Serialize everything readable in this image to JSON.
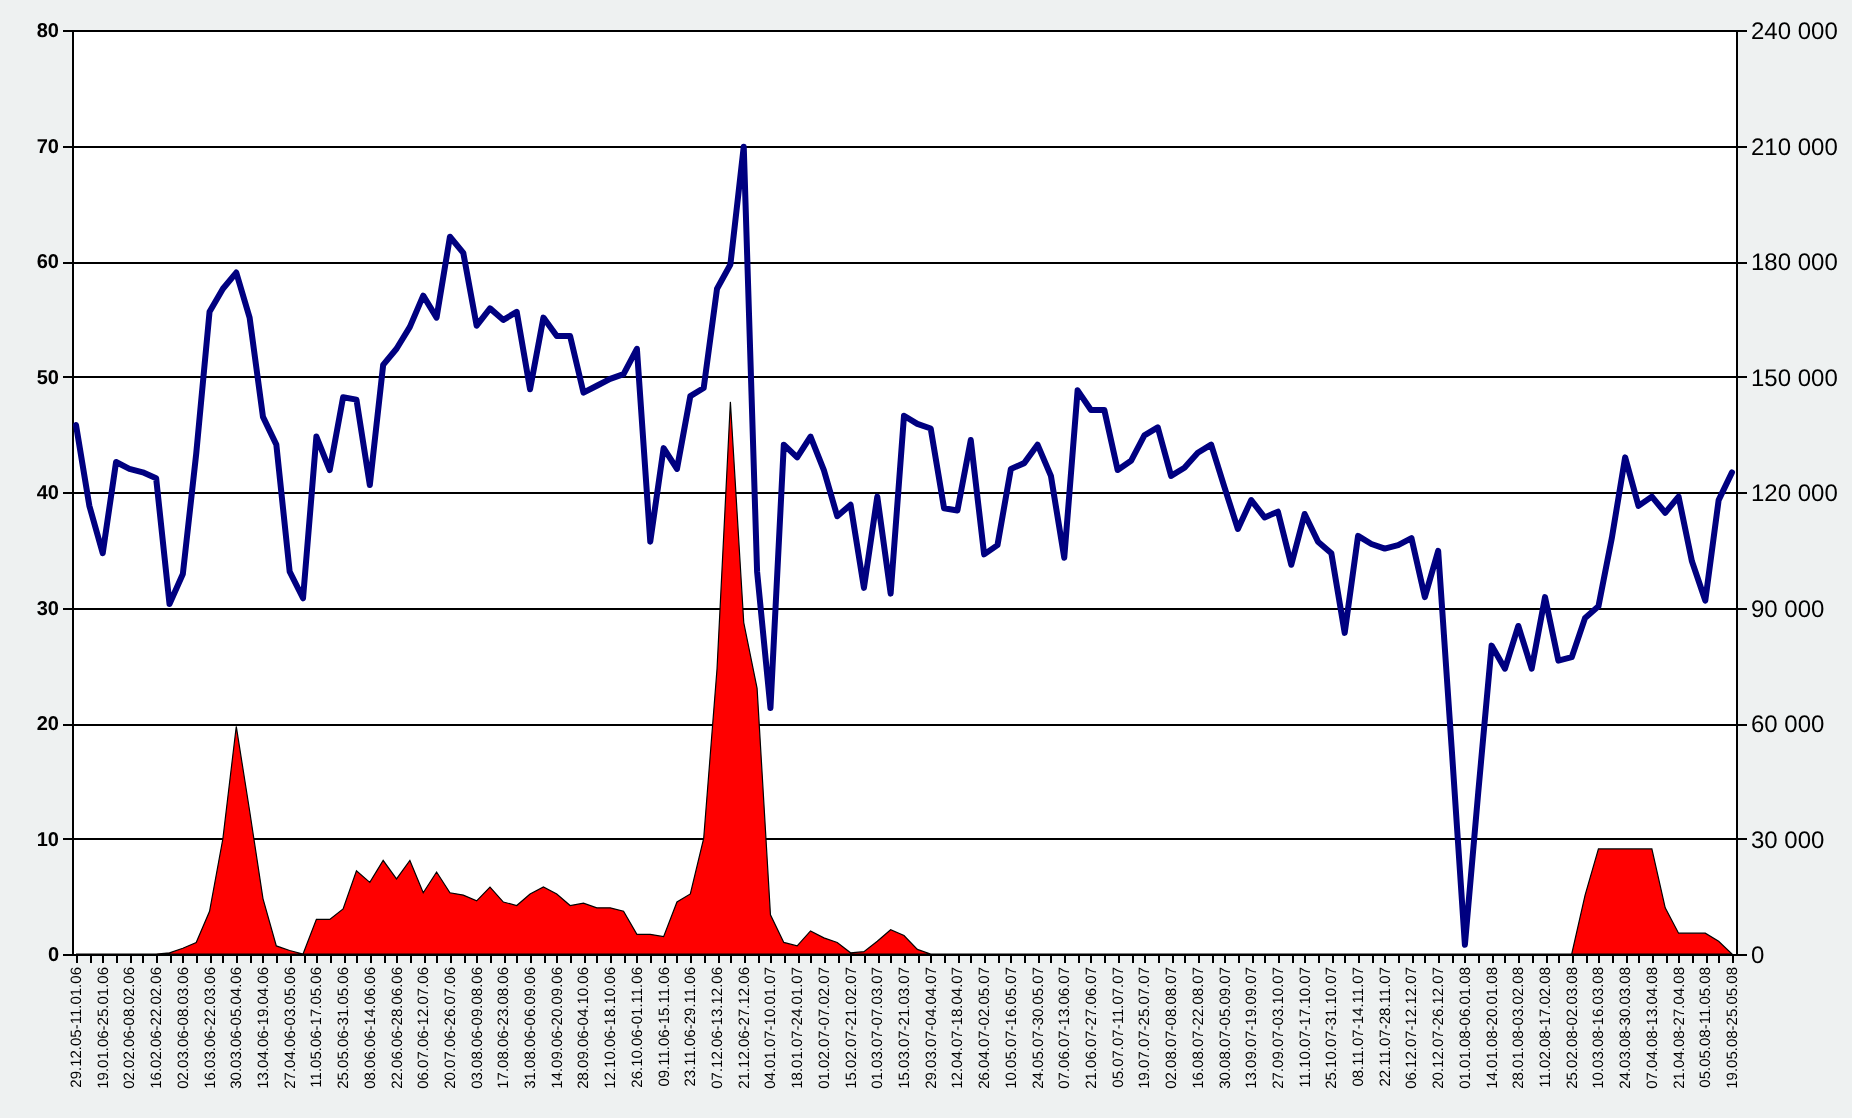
{
  "chart_data": {
    "type": "line",
    "categories": [
      "29.12.05-11.01.06",
      null,
      "19.01.06-25.01.06",
      null,
      "02.02.06-08.02.06",
      null,
      "16.02.06-22.02.06",
      null,
      "02.03.06-08.03.06",
      null,
      "16.03.06-22.03.06",
      null,
      "30.03.06-05.04.06",
      null,
      "13.04.06-19.04.06",
      null,
      "27.04.06-03.05.06",
      null,
      "11.05.06-17.05.06",
      null,
      "25.05.06-31.05.06",
      null,
      "08.06.06-14.06.06",
      null,
      "22.06.06-28.06.06",
      null,
      "06.07.06-12.07.06",
      null,
      "20.07.06-26.07.06",
      null,
      "03.08.06-09.08.06",
      null,
      "17.08.06-23.08.06",
      null,
      "31.08.06-06.09.06",
      null,
      "14.09.06-20.09.06",
      null,
      "28.09.06-04.10.06",
      null,
      "12.10.06-18.10.06",
      null,
      "26.10.06-01.11.06",
      null,
      "09.11.06-15.11.06",
      null,
      "23.11.06-29.11.06",
      null,
      "07.12.06-13.12.06",
      null,
      "21.12.06-27.12.06",
      null,
      "04.01.07-10.01.07",
      null,
      "18.01.07-24.01.07",
      null,
      "01.02.07-07.02.07",
      null,
      "15.02.07-21.02.07",
      null,
      "01.03.07-07.03.07",
      null,
      "15.03.07-21.03.07",
      null,
      "29.03.07-04.04.07",
      null,
      "12.04.07-18.04.07",
      null,
      "26.04.07-02.05.07",
      null,
      "10.05.07-16.05.07",
      null,
      "24.05.07-30.05.07",
      null,
      "07.06.07-13.06.07",
      null,
      "21.06.07-27.06.07",
      null,
      "05.07.07-11.07.07",
      null,
      "19.07.07-25.07.07",
      null,
      "02.08.07-08.08.07",
      null,
      "16.08.07-22.08.07",
      null,
      "30.08.07-05.09.07",
      null,
      "13.09.07-19.09.07",
      null,
      "27.09.07-03.10.07",
      null,
      "11.10.07-17.10.07",
      null,
      "25.10.07-31.10.07",
      null,
      "08.11.07-14.11.07",
      null,
      "22.11.07-28.11.07",
      null,
      "06.12.07-12.12.07",
      null,
      "20.12.07-26.12.07",
      null,
      "01.01.08-06.01.08",
      null,
      "14.01.08-20.01.08",
      null,
      "28.01.08-03.02.08",
      null,
      "11.02.08-17.02.08",
      null,
      "25.02.08-02.03.08",
      null,
      "10.03.08-16.03.08",
      null,
      "24.03.08-30.03.08",
      null,
      "07.04.08-13.04.08",
      null,
      "21.04.08-27.04.08",
      null,
      "05.05.08-11.05.08",
      null,
      "19.05.08-25.05.08"
    ],
    "series": [
      {
        "type": "area",
        "axis": "y2",
        "color": "#ff0000",
        "values": [
          0,
          0,
          0,
          0,
          0,
          0,
          0,
          300,
          1500,
          3000,
          11100,
          30000,
          59100,
          37200,
          14400,
          2100,
          900,
          0,
          9000,
          9000,
          11700,
          21600,
          18600,
          24300,
          19500,
          24300,
          15900,
          21300,
          15900,
          15300,
          13800,
          17400,
          13500,
          12600,
          15600,
          17400,
          15600,
          12600,
          13200,
          12000,
          12000,
          11100,
          5100,
          5100,
          4500,
          13500,
          15600,
          30000,
          74100,
          143400,
          86100,
          69000,
          10200,
          3000,
          2100,
          6000,
          4200,
          3000,
          300,
          600,
          3300,
          6300,
          4800,
          1200,
          0,
          0,
          0,
          0,
          0,
          0,
          0,
          0,
          0,
          0,
          0,
          0,
          0,
          0,
          0,
          0,
          0,
          0,
          0,
          0,
          0,
          0,
          0,
          0,
          0,
          0,
          0,
          0,
          0,
          0,
          0,
          0,
          0,
          0,
          0,
          0,
          0,
          0,
          0,
          0,
          0,
          0,
          0,
          0,
          0,
          0,
          0,
          0,
          0,
          15300,
          27300,
          27300,
          27300,
          27300,
          27300,
          12000,
          5400,
          5400,
          5400,
          3300,
          0
        ]
      },
      {
        "color": "#000080",
        "values": [
          45.8,
          38.8,
          34.7,
          42.6,
          42.0,
          41.7,
          41.2,
          30.3,
          32.9,
          43.3,
          55.6,
          57.6,
          59.0,
          55.1,
          46.5,
          44.1,
          33.1,
          30.8,
          44.8,
          41.9,
          48.2,
          48.0,
          40.6,
          51.0,
          52.4,
          54.3,
          57.0,
          55.1,
          62.1,
          60.7,
          54.4,
          55.9,
          54.9,
          55.6,
          48.9,
          55.1,
          53.5,
          53.5,
          48.6,
          49.2,
          49.8,
          50.2,
          52.4,
          35.7,
          43.8,
          42.0,
          48.3,
          49.0,
          57.6,
          59.7,
          69.9,
          33.1,
          21.3,
          44.1,
          43.0,
          44.8,
          41.9,
          37.9,
          38.9,
          31.7,
          39.6,
          31.2,
          46.6,
          45.9,
          45.5,
          38.6,
          38.4,
          44.5,
          34.6,
          35.4,
          42.0,
          42.5,
          44.1,
          41.4,
          34.3,
          48.8,
          47.1,
          47.1,
          41.9,
          42.7,
          44.9,
          45.6,
          41.4,
          42.1,
          43.4,
          44.1,
          40.4,
          36.8,
          39.3,
          37.8,
          38.3,
          33.7,
          38.1,
          35.7,
          34.7,
          27.8,
          36.2,
          35.5,
          35.1,
          35.4,
          36.0,
          30.9,
          34.9,
          18.0,
          0.8,
          14.0,
          26.7,
          24.7,
          28.4,
          24.7,
          30.9,
          25.4,
          25.7,
          29.1,
          30.1,
          36.0,
          43.0,
          38.8,
          39.6,
          38.2,
          39.6,
          34.0,
          30.6,
          39.3,
          41.7
        ]
      }
    ],
    "ylim": [
      0,
      80
    ],
    "yticks": [
      0,
      10,
      20,
      30,
      40,
      50,
      60,
      70,
      80
    ],
    "y2lim": [
      0,
      240000
    ],
    "y2ticks": [
      {
        "value": 0,
        "label": "0"
      },
      {
        "value": 30000,
        "label": "30 000"
      },
      {
        "value": 60000,
        "label": "60 000"
      },
      {
        "value": 90000,
        "label": "90 000"
      },
      {
        "value": 120000,
        "label": "120 000"
      },
      {
        "value": 150000,
        "label": "150 000"
      },
      {
        "value": 180000,
        "label": "180 000"
      },
      {
        "value": 210000,
        "label": "210 000"
      },
      {
        "value": 240000,
        "label": "240 000"
      }
    ],
    "grid": "y"
  }
}
